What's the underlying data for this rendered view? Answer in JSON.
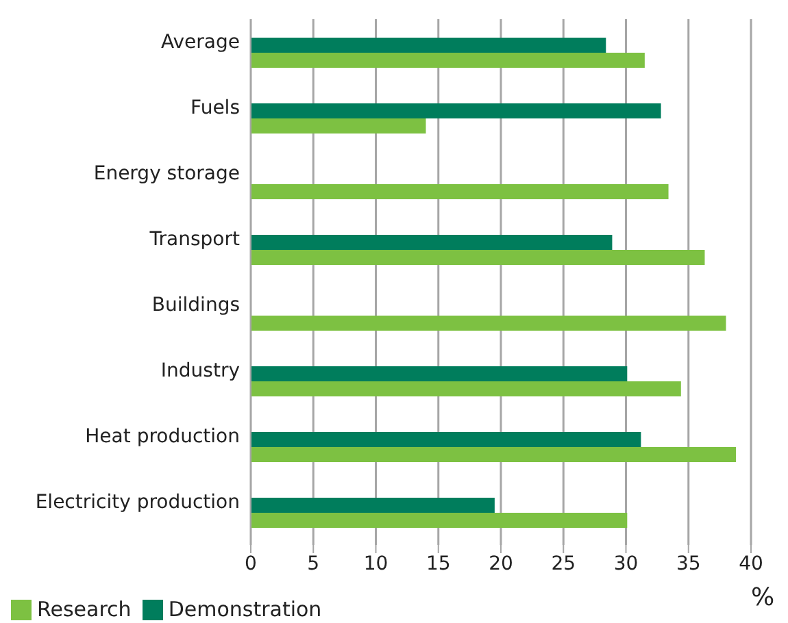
{
  "chart_data": {
    "type": "bar",
    "orientation": "horizontal",
    "xlabel": "%",
    "categories": [
      "Average",
      "Fuels",
      "Energy storage",
      "Transport",
      "Buildings",
      "Industry",
      "Heat production",
      "Electricity production"
    ],
    "series": [
      {
        "name": "Research",
        "color": "#7dc142",
        "values": [
          31.5,
          14.0,
          33.4,
          36.3,
          38.0,
          34.4,
          38.8,
          30.1
        ]
      },
      {
        "name": "Demonstration",
        "color": "#007d5c",
        "values": [
          28.4,
          32.8,
          null,
          28.9,
          null,
          30.1,
          31.2,
          19.5
        ]
      }
    ],
    "xlim": [
      0,
      40
    ],
    "xticks": [
      0,
      5,
      10,
      15,
      20,
      25,
      30,
      35,
      40
    ],
    "grid": "x",
    "legend": "bottom"
  }
}
